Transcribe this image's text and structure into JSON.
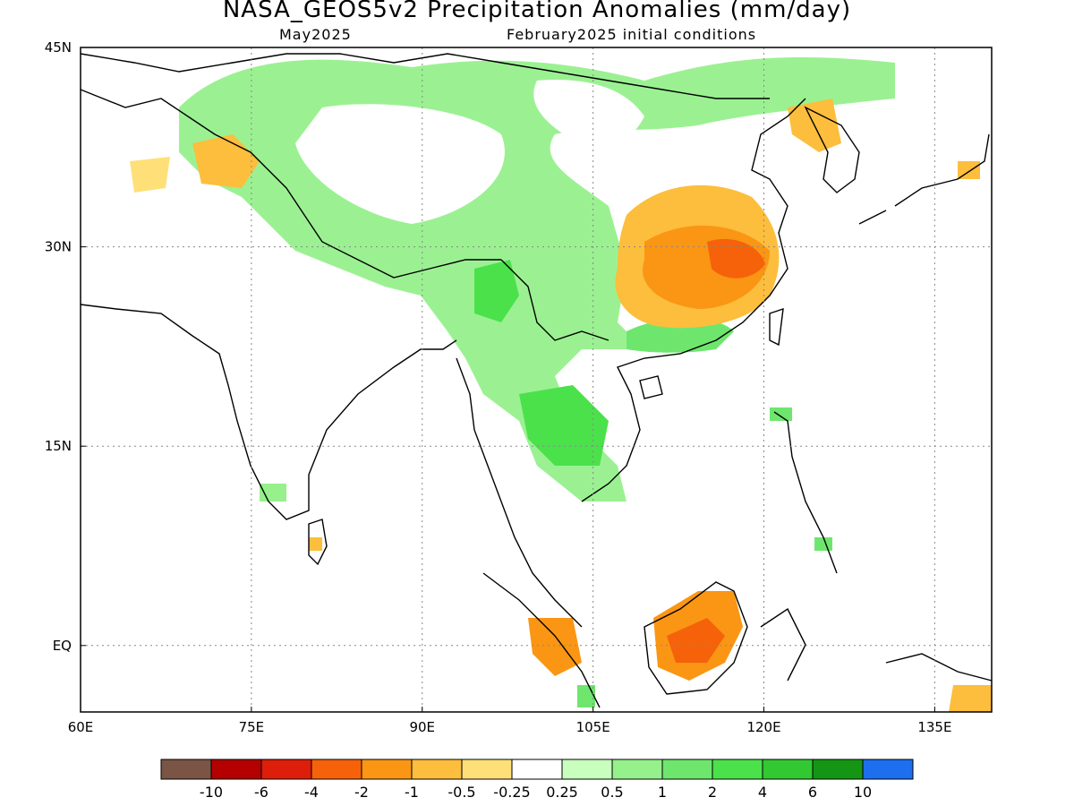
{
  "title": "NASA_GEOS5v2 Precipitation Anomalies (mm/day)",
  "subtitle_left": "May2025",
  "subtitle_right": "February2025 initial conditions",
  "map": {
    "lon_range": [
      60,
      140
    ],
    "lat_range": [
      -5,
      45
    ],
    "x_ticks": [
      {
        "value": 60,
        "label": "60E"
      },
      {
        "value": 75,
        "label": "75E"
      },
      {
        "value": 90,
        "label": "90E"
      },
      {
        "value": 105,
        "label": "105E"
      },
      {
        "value": 120,
        "label": "120E"
      },
      {
        "value": 135,
        "label": "135E"
      }
    ],
    "y_ticks": [
      {
        "value": 45,
        "label": "45N"
      },
      {
        "value": 30,
        "label": "30N"
      },
      {
        "value": 15,
        "label": "15N"
      },
      {
        "value": 0,
        "label": "EQ"
      }
    ],
    "grid": "dotted"
  },
  "colorbar": {
    "colors": [
      "#7a5444",
      "#b40000",
      "#dc1e0a",
      "#f5620a",
      "#fa9614",
      "#fcbe3c",
      "#ffe078",
      "#ffffff",
      "#c8ffbe",
      "#96f08c",
      "#6ee66e",
      "#4be14b",
      "#32c832",
      "#149614",
      "#1e6ef0"
    ],
    "labels": [
      "-10",
      "-6",
      "-4",
      "-2",
      "-1",
      "-0.5",
      "-0.25",
      "0.25",
      "0.5",
      "1",
      "2",
      "4",
      "6",
      "10"
    ]
  }
}
